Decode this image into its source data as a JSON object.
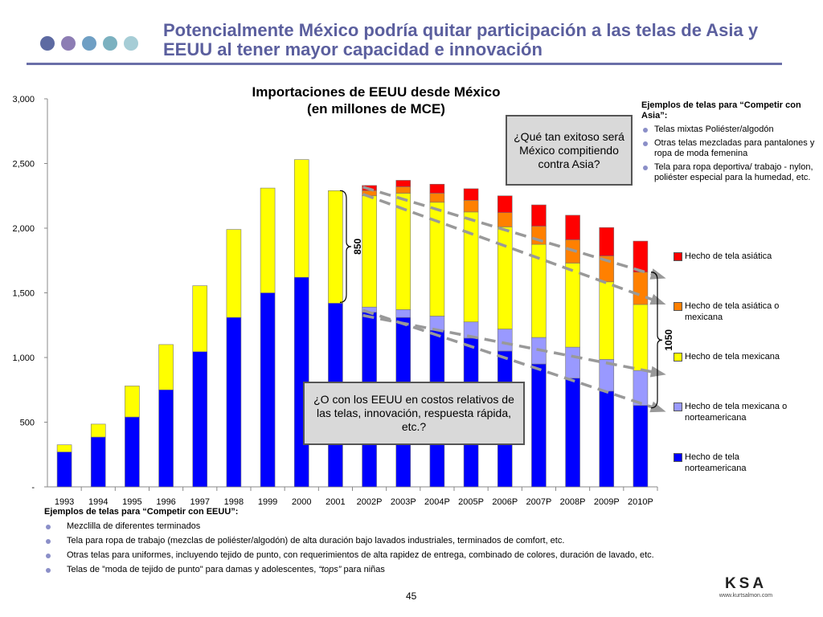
{
  "slide_title": "Potencialmente México podría quitar participación a las telas de Asia y EEUU al tener mayor capacidad e innovación",
  "decor_dot_colors": [
    "#5d6aa2",
    "#8d7db4",
    "#6f9fc4",
    "#7bb1c0",
    "#a6cdd6"
  ],
  "chart_data": {
    "type": "bar",
    "stacked": true,
    "title_line1": "Importaciones de EEUU desde México",
    "title_line2": "(en millones de MCE)",
    "categories": [
      "1993",
      "1994",
      "1995",
      "1996",
      "1997",
      "1998",
      "1999",
      "2000",
      "2001",
      "2002P",
      "2003P",
      "2004P",
      "2005P",
      "2006P",
      "2007P",
      "2008P",
      "2009P",
      "2010P"
    ],
    "ylim": [
      0,
      3000
    ],
    "yticks": [
      0,
      500,
      1000,
      1500,
      2000,
      2500,
      3000
    ],
    "ytick_labels": [
      "-",
      "500",
      "1,000",
      "1,500",
      "2,000",
      "2,500",
      "3,000"
    ],
    "series": [
      {
        "name": "Hecho de tela norteamericana",
        "color": "#0000ff",
        "values": [
          270,
          385,
          540,
          750,
          1045,
          1310,
          1500,
          1620,
          1420,
          1350,
          1310,
          1210,
          1150,
          1050,
          950,
          840,
          740,
          630
        ]
      },
      {
        "name": "Hecho de tela mexicana o norteamericana",
        "color": "#9999ff",
        "values": [
          0,
          0,
          0,
          0,
          0,
          0,
          0,
          0,
          0,
          40,
          60,
          110,
          125,
          170,
          205,
          240,
          245,
          270
        ]
      },
      {
        "name": "Hecho de tela mexicana",
        "color": "#ffff00",
        "values": [
          55,
          100,
          240,
          350,
          510,
          680,
          810,
          910,
          870,
          860,
          900,
          880,
          850,
          790,
          720,
          650,
          600,
          510
        ]
      },
      {
        "name": "Hecho de tela asiática o mexicana",
        "color": "#ff8000",
        "values": [
          0,
          0,
          0,
          0,
          0,
          0,
          0,
          0,
          0,
          40,
          50,
          70,
          90,
          110,
          140,
          180,
          200,
          250
        ]
      },
      {
        "name": "Hecho de tela asiática",
        "color": "#ff0000",
        "values": [
          0,
          0,
          0,
          0,
          0,
          0,
          0,
          0,
          0,
          40,
          50,
          70,
          90,
          130,
          165,
          190,
          220,
          240
        ]
      }
    ],
    "bracket_labels": [
      "850",
      "1050"
    ],
    "grid": false
  },
  "callouts": {
    "asia": "¿Qué tan exitoso será México compitiendo contra Asia?",
    "eeuu": "¿O con los EEUU en costos relativos de las telas, innovación, respuesta rápida, etc.?"
  },
  "legend": [
    {
      "label": "Hecho de tela asiática",
      "color": "#ff0000"
    },
    {
      "label": "Hecho de tela asiática o mexicana",
      "color": "#ff8000"
    },
    {
      "label": "Hecho de tela mexicana",
      "color": "#ffff00"
    },
    {
      "label": "Hecho de tela mexicana o norteamericana",
      "color": "#9999ff"
    },
    {
      "label": "Hecho de tela norteamericana",
      "color": "#0000ff"
    }
  ],
  "notes_asia": {
    "heading": "Ejemplos de telas para “Competir con Asia”:",
    "items": [
      "Telas mixtas Poliéster/algodón",
      "Otras telas mezcladas para pantalones y ropa de moda femenina",
      "Tela para ropa deportiva/ trabajo - nylon, poliéster especial para la humedad, etc."
    ]
  },
  "notes_eeuu": {
    "heading": "Ejemplos de telas para “Competir con EEUU”:",
    "items": [
      "Mezclilla de diferentes terminados",
      "Tela para ropa de trabajo (mezclas de poliéster/algodón) de alta duración bajo lavados industriales, terminados de comfort, etc.",
      "Otras telas para uniformes, incluyendo tejido de punto, con requerimientos de alta rapidez de entrega, combinado de colores, duración de lavado, etc."
    ],
    "last_item_prefix": "Telas de ”moda de tejido de punto\" para damas y adolescentes, ",
    "last_item_italic": "“tops”",
    "last_item_suffix": " para niñas"
  },
  "page_number": "45",
  "logo": {
    "name": "KSA",
    "url": "www.kurtsalmon.com"
  }
}
